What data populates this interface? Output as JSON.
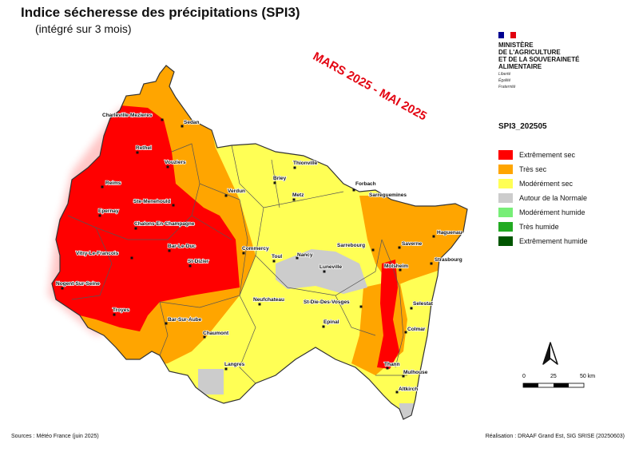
{
  "header": {
    "title": "Indice sécheresse des précipitations (SPI3)",
    "subtitle": "(intégré sur 3 mois)",
    "period": "MARS 2025 - MAI 2025"
  },
  "ministry": {
    "name_lines": [
      "MINISTÈRE",
      "DE L'AGRICULTURE",
      "ET DE LA SOUVERAINETÉ",
      "ALIMENTAIRE"
    ],
    "motto": [
      "Liberté",
      "Égalité",
      "Fraternité"
    ],
    "flag_colors": [
      "#000091",
      "#ffffff",
      "#e1000f"
    ]
  },
  "legend": {
    "title": "SPI3_202505",
    "items": [
      {
        "label": "Extrêmement sec",
        "color": "#ff0000"
      },
      {
        "label": "Très sec",
        "color": "#ffa500"
      },
      {
        "label": "Modérément sec",
        "color": "#ffff55"
      },
      {
        "label": "Autour de la Normale",
        "color": "#cccccc"
      },
      {
        "label": "Modérément humide",
        "color": "#77ee77"
      },
      {
        "label": "Très humide",
        "color": "#22aa22"
      },
      {
        "label": "Extrêmement humide",
        "color": "#005500"
      }
    ]
  },
  "scale": {
    "ticks": [
      "0",
      "25",
      "50 km"
    ]
  },
  "cities": [
    "Charleville-Mezieres",
    "Sedan",
    "Rethel",
    "Vouziers",
    "Reims",
    "Ste-Menehould",
    "Verdun",
    "Thionville",
    "Briey",
    "Metz",
    "Forbach",
    "Sarreguemines",
    "Epernay",
    "Chalons-En-Champagne",
    "Bar-Le-Duc",
    "Commercy",
    "Toul",
    "Nancy",
    "Sarrebourg",
    "Saverne",
    "Haguenau",
    "Strasbourg",
    "Vitry-Le-Francois",
    "St-Dizier",
    "Luneville",
    "Molsheim",
    "Nogent-Sur-Seine",
    "Neufchateau",
    "St-Die-Des-Vosges",
    "Selestat",
    "Troyes",
    "Bar-Sur-Aube",
    "Epinal",
    "Colmar",
    "Chaumont",
    "Langres",
    "Thann",
    "Mulhouse",
    "Altkirch"
  ],
  "footer": {
    "sources": "Sources : Météo France (juin 2025)",
    "credit": "Réalisation : DRAAF Grand Est, SIG SRISE (20250603)"
  }
}
